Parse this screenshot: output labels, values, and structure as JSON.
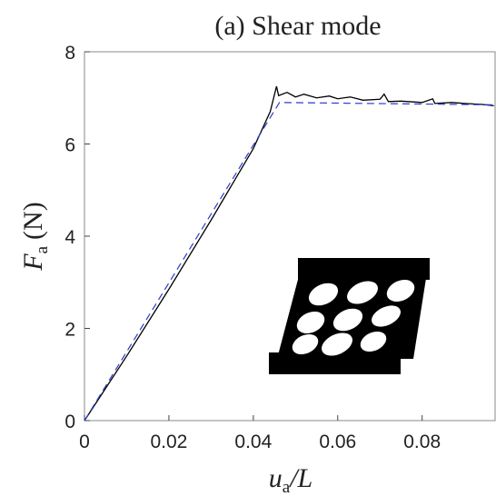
{
  "chart_data": {
    "type": "line",
    "title": "(a) Shear mode",
    "xlabel": {
      "symbol": "u",
      "sub": "a",
      "rest": "/L"
    },
    "ylabel": {
      "symbol": "F",
      "sub": "a",
      "rest": "(N)"
    },
    "xlim": [
      0,
      0.0975
    ],
    "xticks": [
      0,
      0.02,
      0.04,
      0.06,
      0.08
    ],
    "ylim": [
      0,
      8
    ],
    "yticks": [
      0,
      2,
      4,
      6,
      8
    ],
    "series": [
      {
        "color": "#000000",
        "dash": false,
        "x": [
          0,
          0.005,
          0.01,
          0.02,
          0.03,
          0.04,
          0.044,
          0.0455,
          0.046,
          0.048,
          0.05,
          0.052,
          0.055,
          0.058,
          0.06,
          0.063,
          0.066,
          0.07,
          0.071,
          0.072,
          0.075,
          0.08,
          0.0825,
          0.083,
          0.087,
          0.09,
          0.094,
          0.097
        ],
        "values": [
          0,
          0.7,
          1.4,
          2.85,
          4.35,
          5.9,
          6.7,
          7.25,
          7.05,
          7.12,
          7.02,
          7.08,
          7.0,
          7.04,
          6.98,
          7.02,
          6.95,
          6.97,
          7.08,
          6.92,
          6.93,
          6.9,
          6.98,
          6.88,
          6.9,
          6.88,
          6.86,
          6.83
        ]
      },
      {
        "color": "#2a3ccf",
        "dash": true,
        "x": [
          0,
          0.0462,
          0.097
        ],
        "values": [
          0,
          6.9,
          6.85
        ]
      }
    ]
  }
}
